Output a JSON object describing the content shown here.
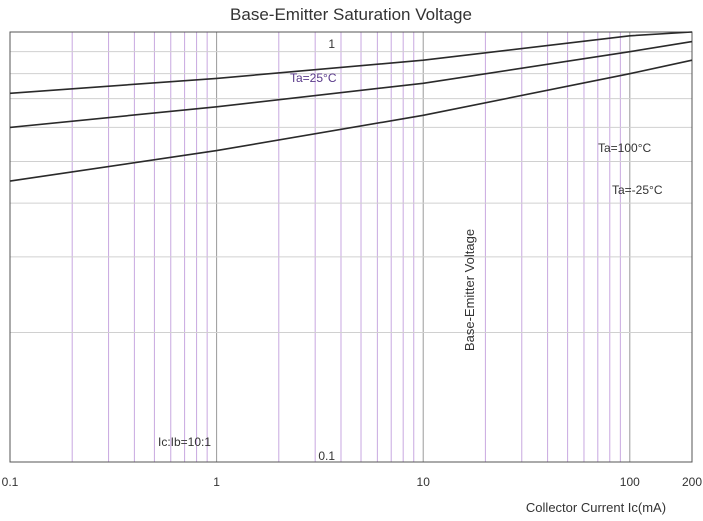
{
  "chart_data": {
    "type": "line",
    "title": "Base-Emitter Saturation Voltage",
    "xlabel": "Collector Current   Ic(mA)",
    "ylabel": "Base-Emitter Voltage",
    "x_scale": "log",
    "y_scale": "log",
    "xlim": [
      0.1,
      200
    ],
    "ylim": [
      0.1,
      1
    ],
    "x_ticks": [
      "0.1",
      "1",
      "10",
      "100",
      "200"
    ],
    "y_ticks": [
      "0.1",
      "1"
    ],
    "grid": true,
    "annotations": [
      "Ta=25°C",
      "Ta=100°C",
      "Ta=-25°C",
      "Ic:Ib=10:1"
    ],
    "series": [
      {
        "name": "Ta=-25°C",
        "color": "#2a2a2a",
        "x": [
          0.1,
          1,
          10,
          100,
          200
        ],
        "y": [
          0.72,
          0.78,
          0.86,
          0.98,
          1.0
        ]
      },
      {
        "name": "Ta=25°C",
        "color": "#2a2a2a",
        "x": [
          0.1,
          1,
          10,
          100,
          200
        ],
        "y": [
          0.6,
          0.67,
          0.76,
          0.9,
          0.95
        ]
      },
      {
        "name": "Ta=100°C",
        "color": "#2a2a2a",
        "x": [
          0.1,
          1,
          10,
          100,
          200
        ],
        "y": [
          0.45,
          0.53,
          0.64,
          0.8,
          0.86
        ]
      }
    ]
  }
}
